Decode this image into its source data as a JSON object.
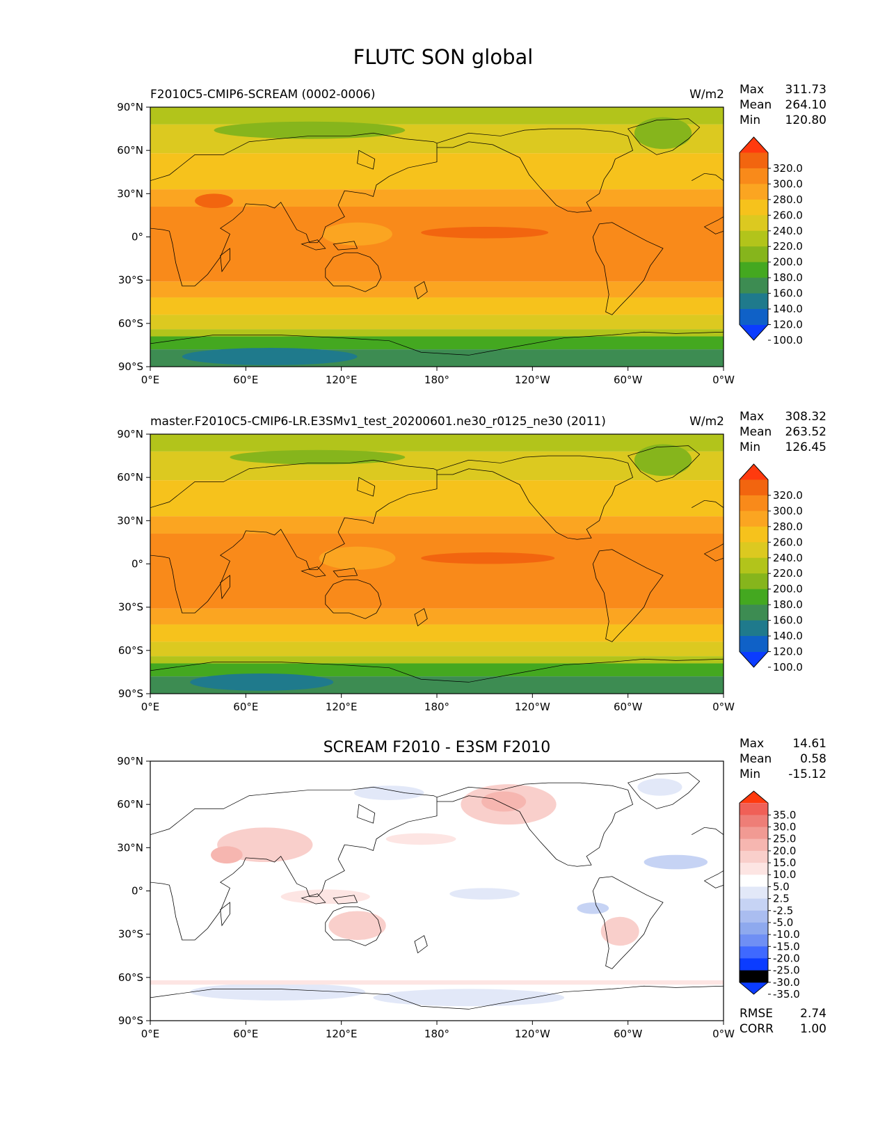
{
  "figure": {
    "title": "FLUTC SON global"
  },
  "colors": {
    "abs_levels": [
      "#0b3cff",
      "#0f61c7",
      "#1f7a8c",
      "#3d8c52",
      "#44a820",
      "#86b51c",
      "#b2c41b",
      "#dcc920",
      "#f6c21c",
      "#fba521",
      "#f98a1a",
      "#f2650f",
      "#ff3a0e"
    ],
    "diff_levels": [
      "#0b3cff",
      "#3f69ff",
      "#6f8ff4",
      "#8ea9ee",
      "#aabdf0",
      "#c6d3f4",
      "#e2e8f8",
      "#ffffff",
      "#fde5e3",
      "#f9cfcb",
      "#f6b6b0",
      "#f19a93",
      "#ee7e77",
      "#f06057",
      "#ff3a0e"
    ],
    "coastline": "#000000",
    "background": "#ffffff"
  },
  "chart_data": [
    {
      "type": "heatmap",
      "kind": "filled-contour-map",
      "title_left": "F2010C5-CMIP6-SCREAM (0002-0006)",
      "title_right": "W/m2",
      "title_center": "",
      "stats": [
        {
          "label": "Max",
          "value": "311.73"
        },
        {
          "label": "Mean",
          "value": "264.10"
        },
        {
          "label": "Min",
          "value": "120.80"
        }
      ],
      "extra_stats": [],
      "x_ticks": [
        "0°E",
        "60°E",
        "120°E",
        "180°",
        "120°W",
        "60°W",
        "0°W"
      ],
      "y_ticks": [
        "90°N",
        "60°N",
        "30°N",
        "0°",
        "30°S",
        "60°S",
        "90°S"
      ],
      "colorbar": {
        "levels": [
          80,
          100,
          120,
          140,
          160,
          180,
          200,
          220,
          240,
          260,
          280,
          300,
          320,
          340
        ],
        "labels": [
          "320.0",
          "300.0",
          "280.0",
          "260.0",
          "240.0",
          "220.0",
          "200.0",
          "180.0",
          "160.0",
          "140.0",
          "120.0",
          "100.0"
        ],
        "extend": "both"
      }
    },
    {
      "type": "heatmap",
      "kind": "filled-contour-map",
      "title_left": "master.F2010C5-CMIP6-LR.E3SMv1_test_20200601.ne30_r0125_ne30 (2011)",
      "title_right": "W/m2",
      "title_center": "",
      "stats": [
        {
          "label": "Max",
          "value": "308.32"
        },
        {
          "label": "Mean",
          "value": "263.52"
        },
        {
          "label": "Min",
          "value": "126.45"
        }
      ],
      "extra_stats": [],
      "x_ticks": [
        "0°E",
        "60°E",
        "120°E",
        "180°",
        "120°W",
        "60°W",
        "0°W"
      ],
      "y_ticks": [
        "90°N",
        "60°N",
        "30°N",
        "0°",
        "30°S",
        "60°S",
        "90°S"
      ],
      "colorbar": {
        "levels": [
          80,
          100,
          120,
          140,
          160,
          180,
          200,
          220,
          240,
          260,
          280,
          300,
          320,
          340
        ],
        "labels": [
          "320.0",
          "300.0",
          "280.0",
          "260.0",
          "240.0",
          "220.0",
          "200.0",
          "180.0",
          "160.0",
          "140.0",
          "120.0",
          "100.0"
        ],
        "extend": "both"
      }
    },
    {
      "type": "heatmap",
      "kind": "filled-contour-map",
      "title_left": "",
      "title_right": "",
      "title_center": "SCREAM F2010 - E3SM F2010",
      "stats": [
        {
          "label": "Max",
          "value": "14.61"
        },
        {
          "label": "Mean",
          "value": "0.58"
        },
        {
          "label": "Min",
          "value": "-15.12"
        }
      ],
      "extra_stats": [
        {
          "label": "RMSE",
          "value": "2.74"
        },
        {
          "label": "CORR",
          "value": "1.00"
        }
      ],
      "x_ticks": [
        "0°E",
        "60°E",
        "120°E",
        "180°",
        "120°W",
        "60°W",
        "0°W"
      ],
      "y_ticks": [
        "90°N",
        "60°N",
        "30°N",
        "0°",
        "30°S",
        "60°S",
        "90°S"
      ],
      "colorbar": {
        "levels": [
          -40,
          -35,
          -30,
          -25,
          -20,
          -15,
          -10,
          -5,
          -2.5,
          2.5,
          5,
          10,
          15,
          20,
          25,
          30,
          35,
          40
        ],
        "labels": [
          "35.0",
          "30.0",
          "25.0",
          "20.0",
          "15.0",
          "10.0",
          "5.0",
          "2.5",
          "-2.5",
          "-5.0",
          "-10.0",
          "-15.0",
          "-20.0",
          "-25.0",
          "-30.0",
          "-35.0"
        ],
        "extend": "both"
      }
    }
  ]
}
